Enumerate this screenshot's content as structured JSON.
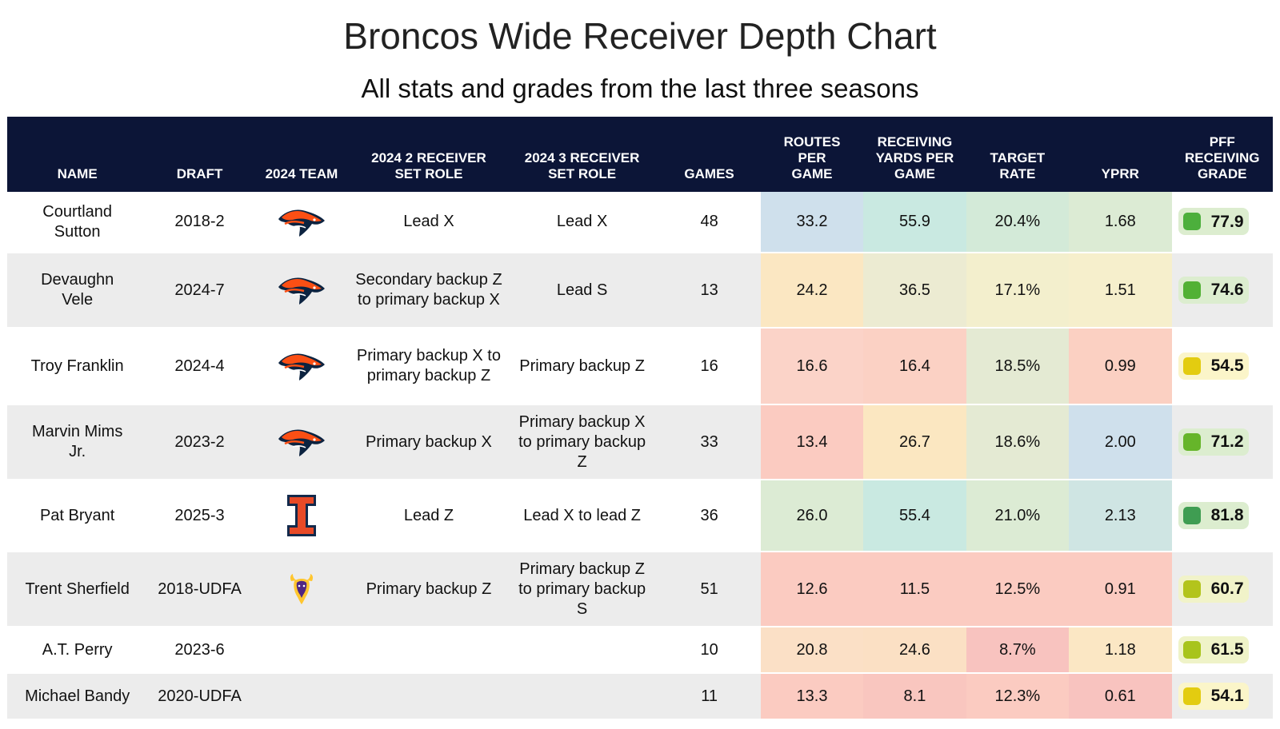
{
  "chart_data": {
    "type": "table",
    "title": "Broncos Wide Receiver Depth Chart",
    "subtitle": "All stats and grades from the last three seasons",
    "columns": [
      "NAME",
      "DRAFT",
      "2024 TEAM",
      "2024 2 RECEIVER SET ROLE",
      "2024 3 RECEIVER SET ROLE",
      "GAMES",
      "ROUTES PER GAME",
      "RECEIVING YARDS PER GAME",
      "TARGET RATE",
      "YPRR",
      "PFF RECEIVING GRADE"
    ],
    "rows": [
      {
        "name": "Courtland Sutton",
        "draft": "2018-2",
        "team": "broncos-logo",
        "role2": "Lead X",
        "role3": "Lead X",
        "games": "48",
        "routes": "33.2",
        "yards": "55.9",
        "target": "20.4%",
        "yprr": "1.68",
        "grade": "77.9",
        "colors": {
          "routes": "#cfe0ec",
          "yards": "#c9e9e1",
          "target": "#d3ead8",
          "yprr": "#dcebd4",
          "grade_bg": "#dcedcf",
          "grade_dot": "#4caf3c"
        }
      },
      {
        "name": "Devaughn Vele",
        "draft": "2024-7",
        "team": "broncos-logo",
        "role2": "Secondary backup Z to primary backup X",
        "role3": "Lead S",
        "games": "13",
        "routes": "24.2",
        "yards": "36.5",
        "target": "17.1%",
        "yprr": "1.51",
        "grade": "74.6",
        "colors": {
          "routes": "#fbe7c2",
          "yards": "#ecebd2",
          "target": "#f3efcd",
          "yprr": "#f6efcc",
          "grade_bg": "#dcedcf",
          "grade_dot": "#52b134"
        }
      },
      {
        "name": "Troy Franklin",
        "draft": "2024-4",
        "team": "broncos-logo",
        "role2": "Primary backup X to primary backup Z",
        "role3": "Primary backup Z",
        "games": "16",
        "routes": "16.6",
        "yards": "16.4",
        "target": "18.5%",
        "yprr": "0.99",
        "grade": "54.5",
        "colors": {
          "routes": "#fbd3c8",
          "yards": "#fbd1c4",
          "target": "#e4ead3",
          "yprr": "#fbd0c2",
          "grade_bg": "#fbf5c9",
          "grade_dot": "#e3cc10"
        }
      },
      {
        "name": "Marvin Mims Jr.",
        "draft": "2023-2",
        "team": "broncos-logo",
        "role2": "Primary backup X",
        "role3": "Primary backup X to primary backup Z",
        "games": "33",
        "routes": "13.4",
        "yards": "26.7",
        "target": "18.6%",
        "yprr": "2.00",
        "grade": "71.2",
        "colors": {
          "routes": "#fbcbc1",
          "yards": "#fbe7c1",
          "target": "#e4ead3",
          "yprr": "#cfe0ec",
          "grade_bg": "#dcedcf",
          "grade_dot": "#66b52a"
        }
      },
      {
        "name": "Pat Bryant",
        "draft": "2025-3",
        "team": "illinois-logo",
        "role2": "Lead Z",
        "role3": "Lead X to lead Z",
        "games": "36",
        "routes": "26.0",
        "yards": "55.4",
        "target": "21.0%",
        "yprr": "2.13",
        "grade": "81.8",
        "colors": {
          "routes": "#dcebd4",
          "yards": "#c9e9e1",
          "target": "#dcebd4",
          "yprr": "#cfe5e3",
          "grade_bg": "#dcedcf",
          "grade_dot": "#3f9d52"
        }
      },
      {
        "name": "Trent Sherfield",
        "draft": "2018-UDFA",
        "team": "vikings-logo",
        "role2": "Primary backup Z",
        "role3": "Primary backup Z to primary backup S",
        "games": "51",
        "routes": "12.6",
        "yards": "11.5",
        "target": "12.5%",
        "yprr": "0.91",
        "grade": "60.7",
        "colors": {
          "routes": "#fbcbc1",
          "yards": "#fbcbc1",
          "target": "#fbcbc1",
          "yprr": "#fbcbc1",
          "grade_bg": "#f1f3c9",
          "grade_dot": "#b3c41c"
        }
      },
      {
        "name": "A.T. Perry",
        "draft": "2023-6",
        "team": "",
        "role2": "",
        "role3": "",
        "games": "10",
        "routes": "20.8",
        "yards": "24.6",
        "target": "8.7%",
        "yprr": "1.18",
        "grade": "61.5",
        "colors": {
          "routes": "#fbe0c6",
          "yards": "#fbe0c4",
          "target": "#f8c3bf",
          "yprr": "#fbe7c4",
          "grade_bg": "#eff3c8",
          "grade_dot": "#a8c41c"
        }
      },
      {
        "name": "Michael Bandy",
        "draft": "2020-UDFA",
        "team": "",
        "role2": "",
        "role3": "",
        "games": "11",
        "routes": "13.3",
        "yards": "8.1",
        "target": "12.3%",
        "yprr": "0.61",
        "grade": "54.1",
        "colors": {
          "routes": "#fbcbc1",
          "yards": "#f9c6bf",
          "target": "#fbcbc1",
          "yprr": "#f8c3bf",
          "grade_bg": "#fbf5c9",
          "grade_dot": "#e3cc10"
        }
      }
    ]
  },
  "style": {
    "header_bg": "#0c1537",
    "header_text": "#ffffff",
    "broncos_orange": "#fb4f14",
    "broncos_navy": "#0c2340",
    "illinois_orange": "#e84a27",
    "illinois_blue": "#13294b",
    "vikings_purple": "#4f2683",
    "vikings_gold": "#ffc62f"
  }
}
